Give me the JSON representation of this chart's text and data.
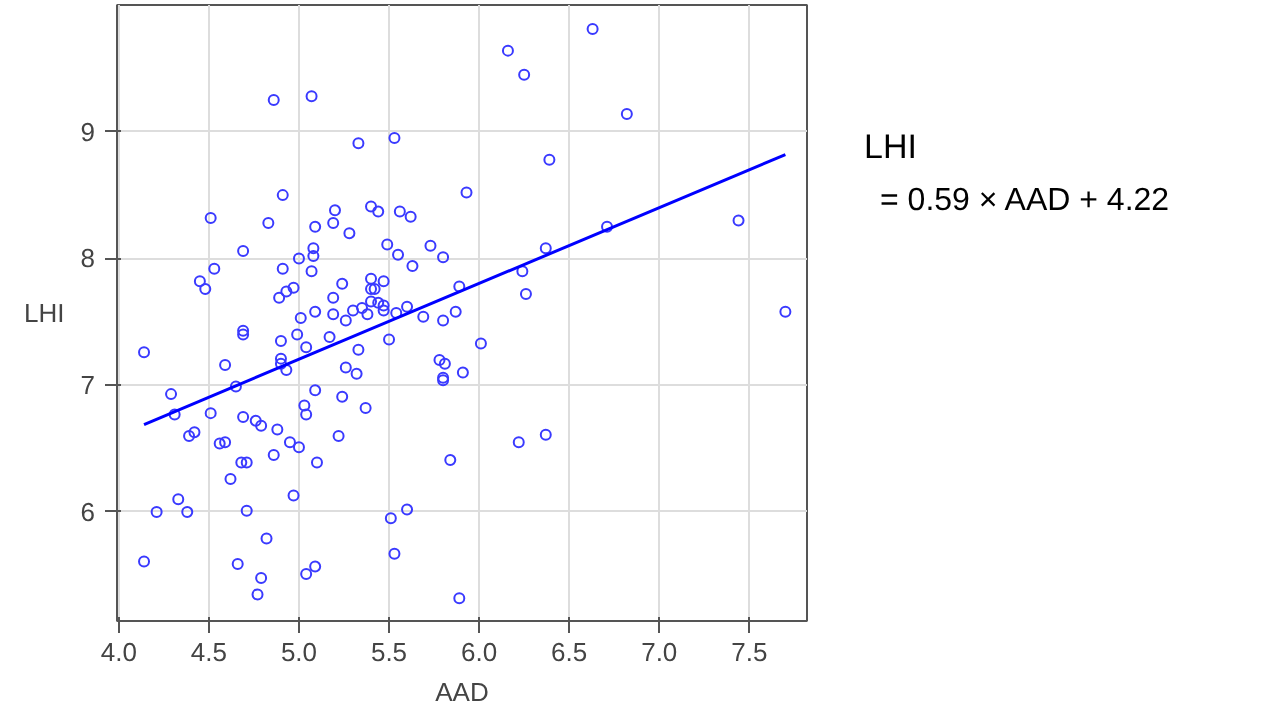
{
  "chart_data": {
    "type": "scatter",
    "xlabel": "AAD",
    "ylabel": "LHI",
    "xlim": [
      3.99,
      7.82
    ],
    "ylim": [
      5.14,
      10.0
    ],
    "xticks": [
      {
        "value": 4.0,
        "label": "4.0"
      },
      {
        "value": 4.5,
        "label": "4.5"
      },
      {
        "value": 5.0,
        "label": "5.0"
      },
      {
        "value": 5.5,
        "label": "5.5"
      },
      {
        "value": 6.0,
        "label": "6.0"
      },
      {
        "value": 6.5,
        "label": "6.5"
      },
      {
        "value": 7.0,
        "label": "7.0"
      },
      {
        "value": 7.5,
        "label": "7.5"
      }
    ],
    "yticks": [
      6,
      7,
      8,
      9
    ],
    "grid": true,
    "annotations": [
      "LHI",
      "= 0.59 × AAD + 4.22"
    ],
    "series": [
      {
        "marker": "circle",
        "color": "#3a3aff",
        "x": [
          4.86,
          5.07,
          5.33,
          5.53,
          5.93,
          4.91,
          4.51,
          4.83,
          5.09,
          5.2,
          5.19,
          5.4,
          5.44,
          5.56,
          5.62,
          5.28,
          4.69,
          5.08,
          5.08,
          5.0,
          5.49,
          5.55,
          5.73,
          5.8,
          5.63,
          4.53,
          4.45,
          4.48,
          4.91,
          5.07,
          4.89,
          4.93,
          4.97,
          5.24,
          5.4,
          5.47,
          5.19,
          5.4,
          5.42,
          5.4,
          5.44,
          5.47,
          5.47,
          5.3,
          5.35,
          5.38,
          5.19,
          5.26,
          5.09,
          5.01,
          5.6,
          5.54,
          5.69,
          5.8,
          5.87,
          5.89,
          4.99,
          5.17,
          4.69,
          4.69,
          4.9,
          5.5,
          4.14,
          5.04,
          4.9,
          4.9,
          4.93,
          4.59,
          5.33,
          5.26,
          5.32,
          5.78,
          5.81,
          5.8,
          5.8,
          5.91,
          4.29,
          4.31,
          4.65,
          5.09,
          5.03,
          5.04,
          5.24,
          5.37,
          4.51,
          4.69,
          4.76,
          4.79,
          4.39,
          4.42,
          4.56,
          4.59,
          4.88,
          4.95,
          5.0,
          5.22,
          4.86,
          4.68,
          4.71,
          5.1,
          4.62,
          5.84,
          4.97,
          4.33,
          4.21,
          4.38,
          4.71,
          5.51,
          5.6,
          4.14,
          4.66,
          4.82,
          4.79,
          4.77,
          5.04,
          5.09,
          5.53,
          5.89,
          6.16,
          6.63,
          6.25,
          6.82,
          6.39,
          7.44,
          6.71,
          6.37,
          6.24,
          6.26,
          7.7,
          6.01,
          6.22,
          6.37
        ],
        "values": [
          9.25,
          9.28,
          8.91,
          8.95,
          8.52,
          8.5,
          8.32,
          8.28,
          8.25,
          8.38,
          8.28,
          8.41,
          8.37,
          8.37,
          8.33,
          8.2,
          8.06,
          8.08,
          8.02,
          8.0,
          8.11,
          8.03,
          8.1,
          8.01,
          7.94,
          7.92,
          7.82,
          7.76,
          7.92,
          7.9,
          7.69,
          7.74,
          7.77,
          7.8,
          7.84,
          7.82,
          7.69,
          7.76,
          7.76,
          7.66,
          7.65,
          7.63,
          7.59,
          7.59,
          7.61,
          7.56,
          7.56,
          7.51,
          7.58,
          7.53,
          7.62,
          7.57,
          7.54,
          7.51,
          7.58,
          7.78,
          7.4,
          7.38,
          7.43,
          7.4,
          7.35,
          7.36,
          7.26,
          7.3,
          7.21,
          7.17,
          7.12,
          7.16,
          7.28,
          7.14,
          7.09,
          7.2,
          7.17,
          7.06,
          7.04,
          7.1,
          6.93,
          6.77,
          6.99,
          6.96,
          6.84,
          6.77,
          6.91,
          6.82,
          6.78,
          6.75,
          6.72,
          6.68,
          6.6,
          6.63,
          6.54,
          6.55,
          6.65,
          6.55,
          6.51,
          6.6,
          6.45,
          6.39,
          6.39,
          6.39,
          6.26,
          6.41,
          6.13,
          6.1,
          6.0,
          6.0,
          6.01,
          5.95,
          6.02,
          5.61,
          5.59,
          5.79,
          5.48,
          5.35,
          5.51,
          5.57,
          5.67,
          5.32,
          9.64,
          9.81,
          9.45,
          9.14,
          8.78,
          8.3,
          8.25,
          8.08,
          7.9,
          7.72,
          7.58,
          7.33,
          6.55,
          6.61
        ]
      },
      {
        "type": "line",
        "color": "#0000ff",
        "x": [
          4.14,
          7.7
        ],
        "values": [
          6.69,
          8.82
        ]
      }
    ]
  }
}
